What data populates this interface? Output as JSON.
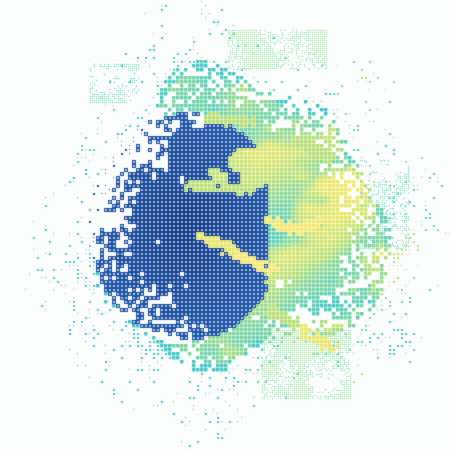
{
  "viewport": {
    "background_color": "#fcfdfd",
    "map_background": "#fcfdfd",
    "grid_line_color": "#ffffff"
  },
  "radar_composite": {
    "layer_name": "precipitation-intensity",
    "coverage": "single-site-circular-sweep",
    "render_style": "pixelated-cells-with-light-gridlines",
    "palette": {
      "very_light": "#2cb1d1",
      "light": "#4cc8c2",
      "light_moderate": "#7fd3a2",
      "moderate": "#b8de7a",
      "moderate_heavy": "#e6e66d",
      "heavy": "#f3e875",
      "deep_core": "#1f56a8",
      "deep_core_dark": "#123c8a"
    },
    "visible_features": [
      "dense-blue-core-west",
      "green-yellow-bands-east",
      "sparse-speckled-edges",
      "northern-spray-fragment",
      "southern-spray-fragment"
    ]
  }
}
